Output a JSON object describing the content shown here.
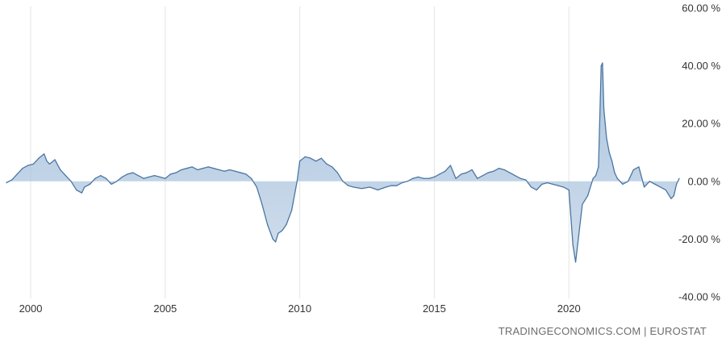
{
  "chart_data": {
    "type": "area",
    "title": "",
    "xlabel": "",
    "ylabel": "",
    "x_ticks": [
      2000,
      2005,
      2010,
      2015,
      2020
    ],
    "x_tick_labels": [
      "2000",
      "2005",
      "2010",
      "2015",
      "2020"
    ],
    "y_ticks": [
      60,
      40,
      20,
      0,
      -20,
      -40
    ],
    "y_tick_labels": [
      "60.00 %",
      "40.00 %",
      "20.00 %",
      "0.00 %",
      "-20.00 %",
      "-40.00 %"
    ],
    "xlim": [
      1999.1,
      2024.1
    ],
    "ylim": [
      -40,
      60
    ],
    "grid": "vertical",
    "legend": "none",
    "colors": {
      "line": "#4a76a2",
      "fill": "#a9c2dd",
      "grid": "#e4e4e4",
      "text": "#333333"
    },
    "series": [
      {
        "x": [
          1999.1,
          1999.3,
          1999.5,
          1999.7,
          1999.9,
          2000.1,
          2000.3,
          2000.5,
          2000.6,
          2000.7,
          2000.9,
          2001.1,
          2001.3,
          2001.5,
          2001.7,
          2001.9,
          2002.0,
          2002.2,
          2002.4,
          2002.6,
          2002.8,
          2003.0,
          2003.2,
          2003.4,
          2003.6,
          2003.8,
          2004.0,
          2004.2,
          2004.4,
          2004.6,
          2004.8,
          2005.0,
          2005.2,
          2005.4,
          2005.6,
          2005.8,
          2006.0,
          2006.2,
          2006.4,
          2006.6,
          2006.8,
          2007.0,
          2007.2,
          2007.4,
          2007.6,
          2007.8,
          2008.0,
          2008.2,
          2008.4,
          2008.6,
          2008.8,
          2009.0,
          2009.1,
          2009.2,
          2009.35,
          2009.5,
          2009.7,
          2009.9,
          2010.0,
          2010.2,
          2010.4,
          2010.6,
          2010.8,
          2011.0,
          2011.2,
          2011.4,
          2011.6,
          2011.8,
          2012.0,
          2012.3,
          2012.6,
          2012.9,
          2013.2,
          2013.4,
          2013.6,
          2013.8,
          2014.0,
          2014.2,
          2014.4,
          2014.6,
          2014.8,
          2015.0,
          2015.2,
          2015.4,
          2015.6,
          2015.8,
          2016.0,
          2016.2,
          2016.4,
          2016.6,
          2016.8,
          2017.0,
          2017.2,
          2017.4,
          2017.6,
          2017.8,
          2018.0,
          2018.2,
          2018.4,
          2018.6,
          2018.8,
          2019.0,
          2019.2,
          2019.4,
          2019.6,
          2019.8,
          2020.0,
          2020.15,
          2020.25,
          2020.35,
          2020.5,
          2020.7,
          2020.9,
          2021.0,
          2021.1,
          2021.2,
          2021.25,
          2021.3,
          2021.4,
          2021.5,
          2021.6,
          2021.7,
          2021.8,
          2022.0,
          2022.2,
          2022.4,
          2022.6,
          2022.8,
          2023.0,
          2023.2,
          2023.4,
          2023.6,
          2023.8,
          2023.9,
          2024.0,
          2024.1
        ],
        "y": [
          -0.5,
          0.5,
          2.5,
          4.5,
          5.5,
          6,
          8,
          9.5,
          7,
          6,
          7.5,
          4,
          2,
          0,
          -3,
          -4,
          -2,
          -1,
          1,
          2,
          1,
          -1,
          0,
          1.5,
          2.5,
          3,
          2,
          1,
          1.5,
          2,
          1.5,
          1,
          2.5,
          3,
          4,
          4.5,
          5,
          4,
          4.5,
          5,
          4.5,
          4,
          3.5,
          4,
          3.5,
          3,
          2.5,
          1,
          -2,
          -8,
          -15,
          -20,
          -21,
          -18,
          -17,
          -15,
          -10,
          0,
          7,
          8.5,
          8,
          7,
          8,
          6,
          5,
          3,
          0,
          -1.5,
          -2,
          -2.5,
          -2,
          -3,
          -2,
          -1.5,
          -1.5,
          -0.5,
          0,
          1,
          1.5,
          1,
          1,
          1.5,
          2.5,
          3.5,
          5.5,
          1,
          2.5,
          3,
          4,
          1,
          2,
          3,
          3.5,
          4.5,
          4,
          3,
          2,
          1,
          0.5,
          -2,
          -3,
          -1,
          -0.5,
          -1,
          -1.5,
          -2,
          -3,
          -22,
          -28,
          -20,
          -8,
          -5,
          1,
          2,
          5,
          40,
          41,
          25,
          15,
          10,
          7,
          3,
          1,
          -1,
          0,
          4,
          5,
          -2,
          0,
          -1,
          -2,
          -3,
          -6,
          -5,
          -1,
          1
        ]
      }
    ]
  },
  "source_label": "TRADINGECONOMICS.COM | EUROSTAT"
}
